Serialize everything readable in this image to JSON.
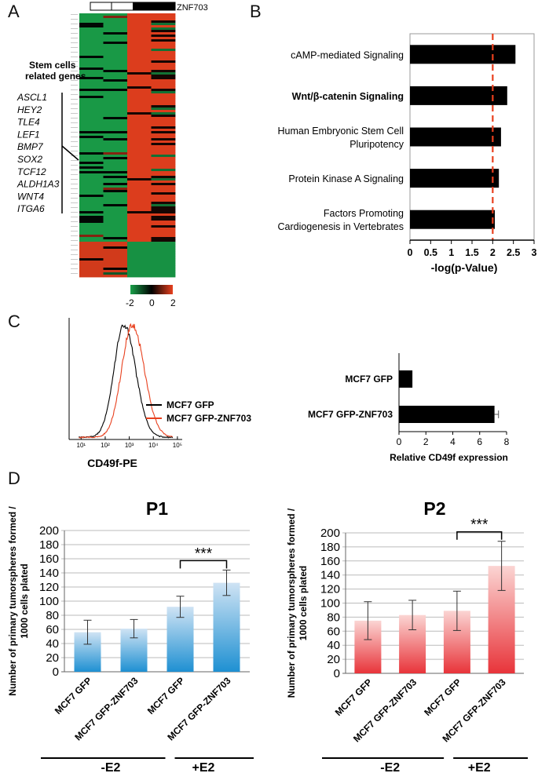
{
  "panel_labels": {
    "a": "A",
    "b": "B",
    "c": "C",
    "d": "D"
  },
  "heatmap": {
    "top_label": "ZNF703",
    "side_title_1": "Stem cells",
    "side_title_2": "related genes",
    "genes": [
      "ASCL1",
      "HEY2",
      "TLE4",
      "LEF1",
      "BMP7",
      "SOX2",
      "TCF12",
      "ALDH1A3",
      "WNT4",
      "ITGA6"
    ],
    "scale_ticks": [
      "-2",
      "0",
      "2"
    ],
    "colors": {
      "low": "#1aa14a",
      "mid": "#000000",
      "high": "#e8401e"
    }
  },
  "chart_data": [
    {
      "id": "B",
      "type": "bar",
      "orientation": "horizontal",
      "categories": [
        "cAMP-mediated Signaling",
        "Wnt/β-catenin Signaling",
        "Human Embryonic Stem Cell Pluripotency",
        "Protein Kinase A Signaling",
        "Factors Promoting Cardiogenesis in Vertebrates"
      ],
      "category_lines": [
        [
          "cAMP-mediated Signaling"
        ],
        [
          "Wnt/β-catenin Signaling"
        ],
        [
          "Human Embryonic Stem Cell",
          "Pluripotency"
        ],
        [
          "Protein Kinase A Signaling"
        ],
        [
          "Factors  Promoting",
          "Cardiogenesis in Vertebrates"
        ]
      ],
      "values": [
        2.55,
        2.35,
        2.2,
        2.15,
        2.05
      ],
      "threshold": 2.0,
      "xlim": [
        0,
        3
      ],
      "xticks": [
        "0",
        "0.5",
        "1",
        "1.5",
        "2",
        "2.5",
        "3"
      ],
      "xlabel": "-log(p-Value)",
      "bar_color": "#000000",
      "threshold_color": "#e8401e"
    },
    {
      "id": "C-hist",
      "type": "line",
      "xlabel": "CD49f-PE",
      "tick_labels": [
        "10¹",
        "10²",
        "10³",
        "10⁴",
        "10⁵"
      ],
      "x_log_range": [
        0.5,
        5.2
      ],
      "series": [
        {
          "name": "MCF7 GFP",
          "color": "#000000",
          "peak_log": 2.78,
          "width": 0.42
        },
        {
          "name": "MCF7 GFP-ZNF703",
          "color": "#e8401e",
          "peak_log": 3.12,
          "width": 0.44
        }
      ],
      "legend": [
        "MCF7 GFP",
        "MCF7 GFP-ZNF703"
      ]
    },
    {
      "id": "C-bar",
      "type": "bar",
      "orientation": "horizontal",
      "categories": [
        "MCF7 GFP",
        "MCF7 GFP-ZNF703"
      ],
      "values": [
        1.0,
        7.1
      ],
      "errors": [
        0.0,
        0.3
      ],
      "xlim": [
        0,
        8
      ],
      "xticks": [
        "0",
        "2",
        "4",
        "6",
        "8"
      ],
      "xlabel": "Relative CD49f expression"
    },
    {
      "id": "D-P1",
      "type": "bar",
      "title": "P1",
      "categories": [
        "MCF7 GFP",
        "MCF7 GFP-ZNF703",
        "MCF7 GFP",
        "MCF7 GFP-ZNF703"
      ],
      "groups": [
        "-E2",
        "+E2"
      ],
      "values": [
        56,
        61,
        92,
        126
      ],
      "errors": [
        17,
        13,
        15,
        18
      ],
      "ylim": [
        0,
        200
      ],
      "yticks": [
        "0",
        "20",
        "40",
        "60",
        "80",
        "100",
        "120",
        "140",
        "160",
        "180",
        "200"
      ],
      "ylabel_1": "Number of primary tumorspheres formed /",
      "ylabel_2": "1000 cells plated",
      "significance": "***",
      "color_top": "#cfe3f4",
      "color_bottom": "#1e90d2"
    },
    {
      "id": "D-P2",
      "type": "bar",
      "title": "P2",
      "categories": [
        "MCF7 GFP",
        "MCF7 GFP-ZNF703",
        "MCF7 GFP",
        "MCF7 GFP-ZNF703"
      ],
      "groups": [
        "-E2",
        "+E2"
      ],
      "values": [
        75,
        83,
        89,
        153
      ],
      "errors": [
        27,
        21,
        28,
        35
      ],
      "ylim": [
        0,
        200
      ],
      "yticks": [
        "0",
        "20",
        "40",
        "60",
        "80",
        "100",
        "120",
        "140",
        "160",
        "180",
        "200"
      ],
      "ylabel_1": "Number of primary tumorspheres formed /",
      "ylabel_2": "1000 cells plated",
      "significance": "***",
      "color_top": "#fbd5d3",
      "color_bottom": "#e8343a"
    }
  ]
}
